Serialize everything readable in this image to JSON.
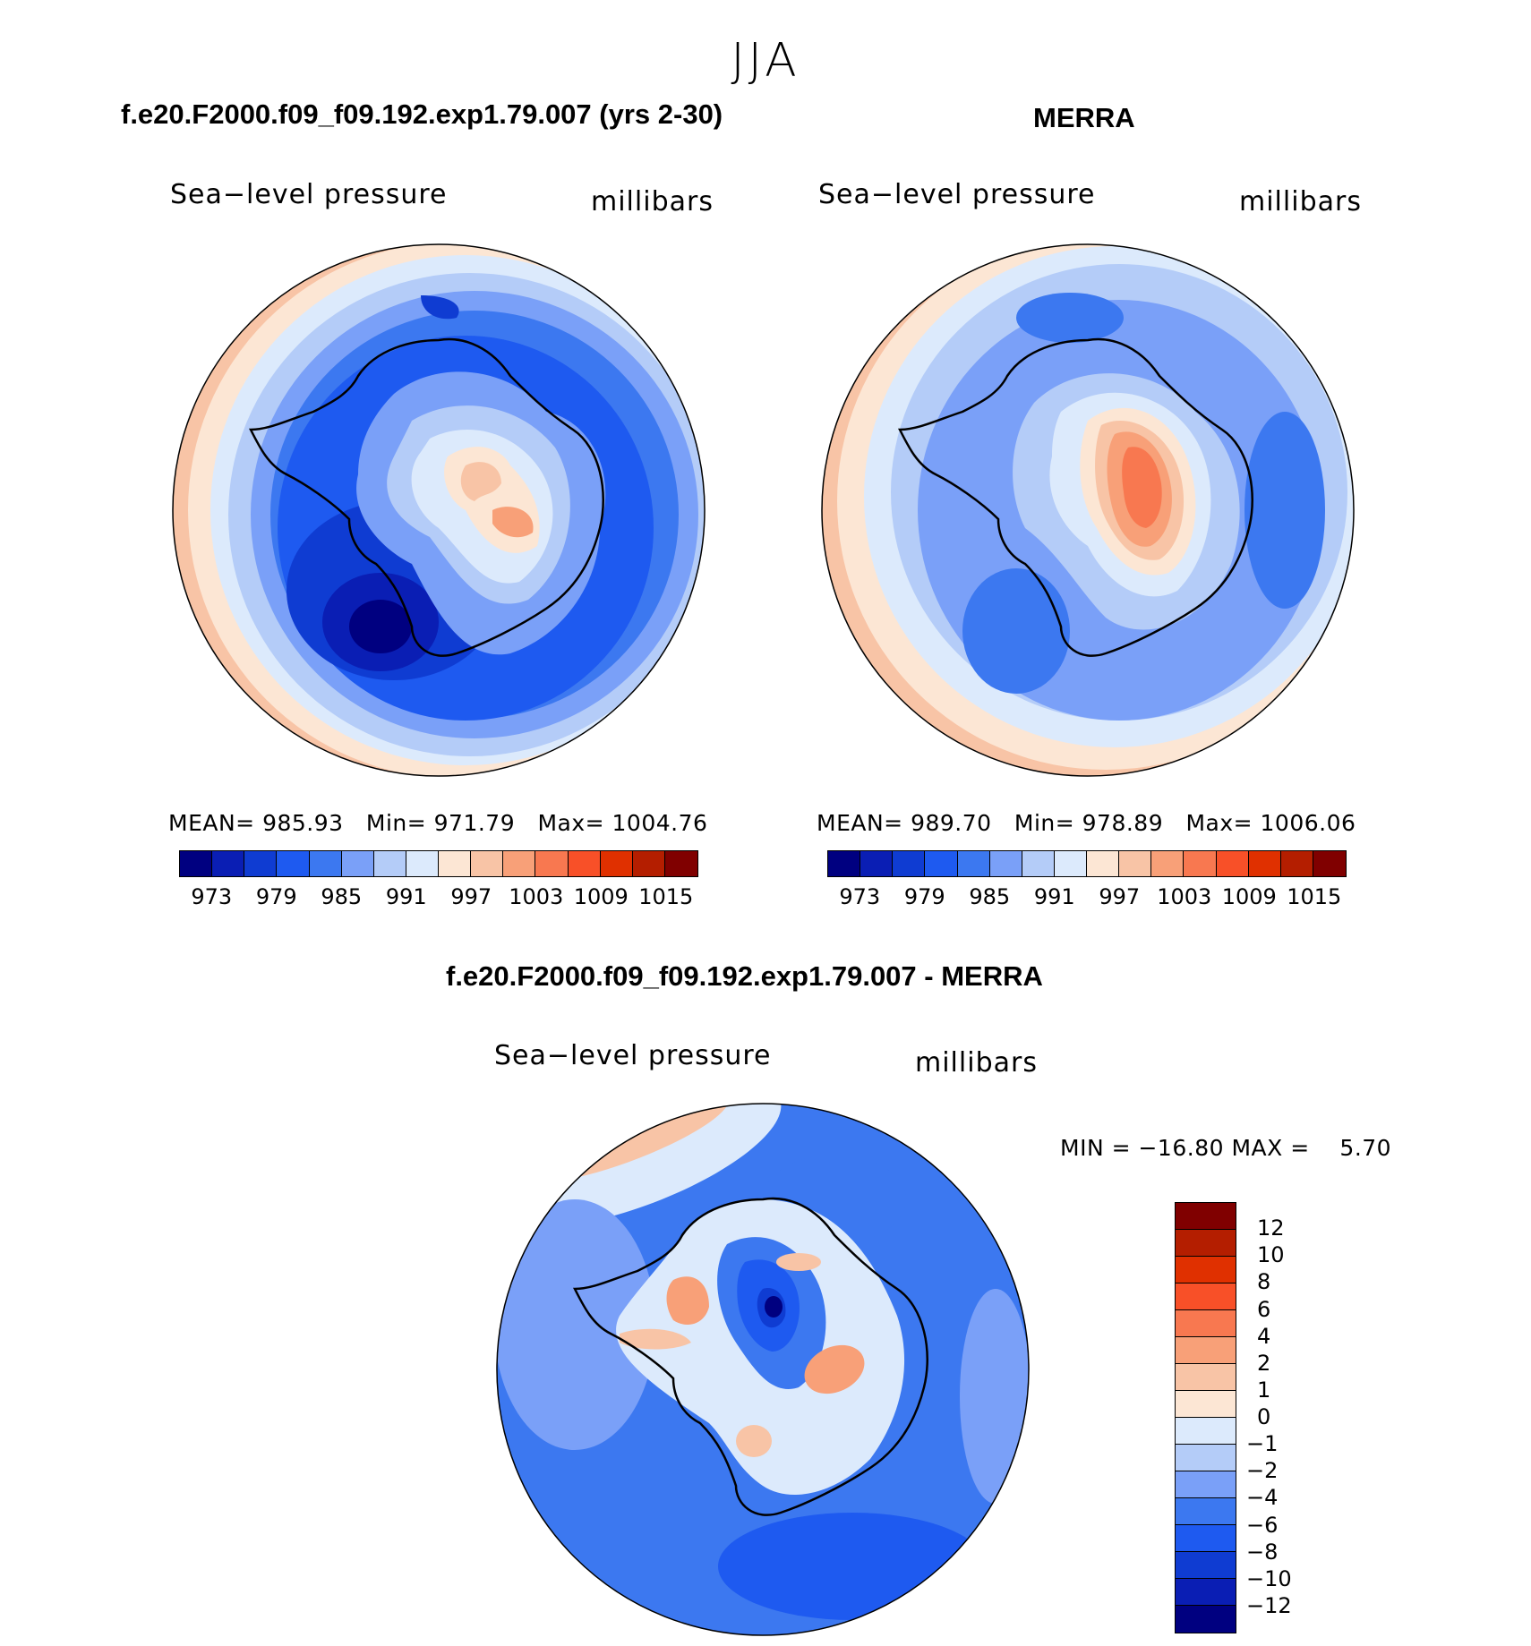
{
  "figure": {
    "season": "JJA"
  },
  "panels": {
    "model": {
      "case_title": "f.e20.F2000.f09_f09.192.exp1.79.007 (yrs 2-30)",
      "variable": "Sea−level pressure",
      "units": "millibars",
      "stats": "MEAN= 985.93   Min= 971.79   Max= 1004.76"
    },
    "obs": {
      "case_title": "MERRA",
      "variable": "Sea−level pressure",
      "units": "millibars",
      "stats": "MEAN= 989.70   Min= 978.89   Max= 1006.06"
    },
    "diff": {
      "case_title": "f.e20.F2000.f09_f09.192.exp1.79.007 - MERRA",
      "variable": "Sea−level pressure",
      "units": "millibars",
      "stats": "MIN = −16.80 MAX =    5.70"
    }
  },
  "colorbar_abs": {
    "colors": [
      "#000080",
      "#0a1eb4",
      "#0f3cd2",
      "#1e5af0",
      "#3c78f0",
      "#7aa0f8",
      "#b4ccf8",
      "#dceafc",
      "#fce6d4",
      "#f8c4a6",
      "#f8a078",
      "#f87850",
      "#f85028",
      "#e03000",
      "#b41e00",
      "#800000"
    ],
    "tick_labels": [
      "973",
      "979",
      "985",
      "991",
      "997",
      "1003",
      "1009",
      "1015"
    ]
  },
  "colorbar_diff": {
    "colors": [
      "#800000",
      "#b41e00",
      "#e03000",
      "#f85028",
      "#f87850",
      "#f8a078",
      "#f8c4a6",
      "#fce6d4",
      "#dceafc",
      "#b4ccf8",
      "#7aa0f8",
      "#3c78f0",
      "#1e5af0",
      "#0f3cd2",
      "#0a1eb4",
      "#000080"
    ],
    "tick_labels": [
      "12",
      "10",
      "8",
      "6",
      "4",
      "2",
      "1",
      "0",
      "−1",
      "−2",
      "−4",
      "−6",
      "−8",
      "−10",
      "−12"
    ]
  }
}
